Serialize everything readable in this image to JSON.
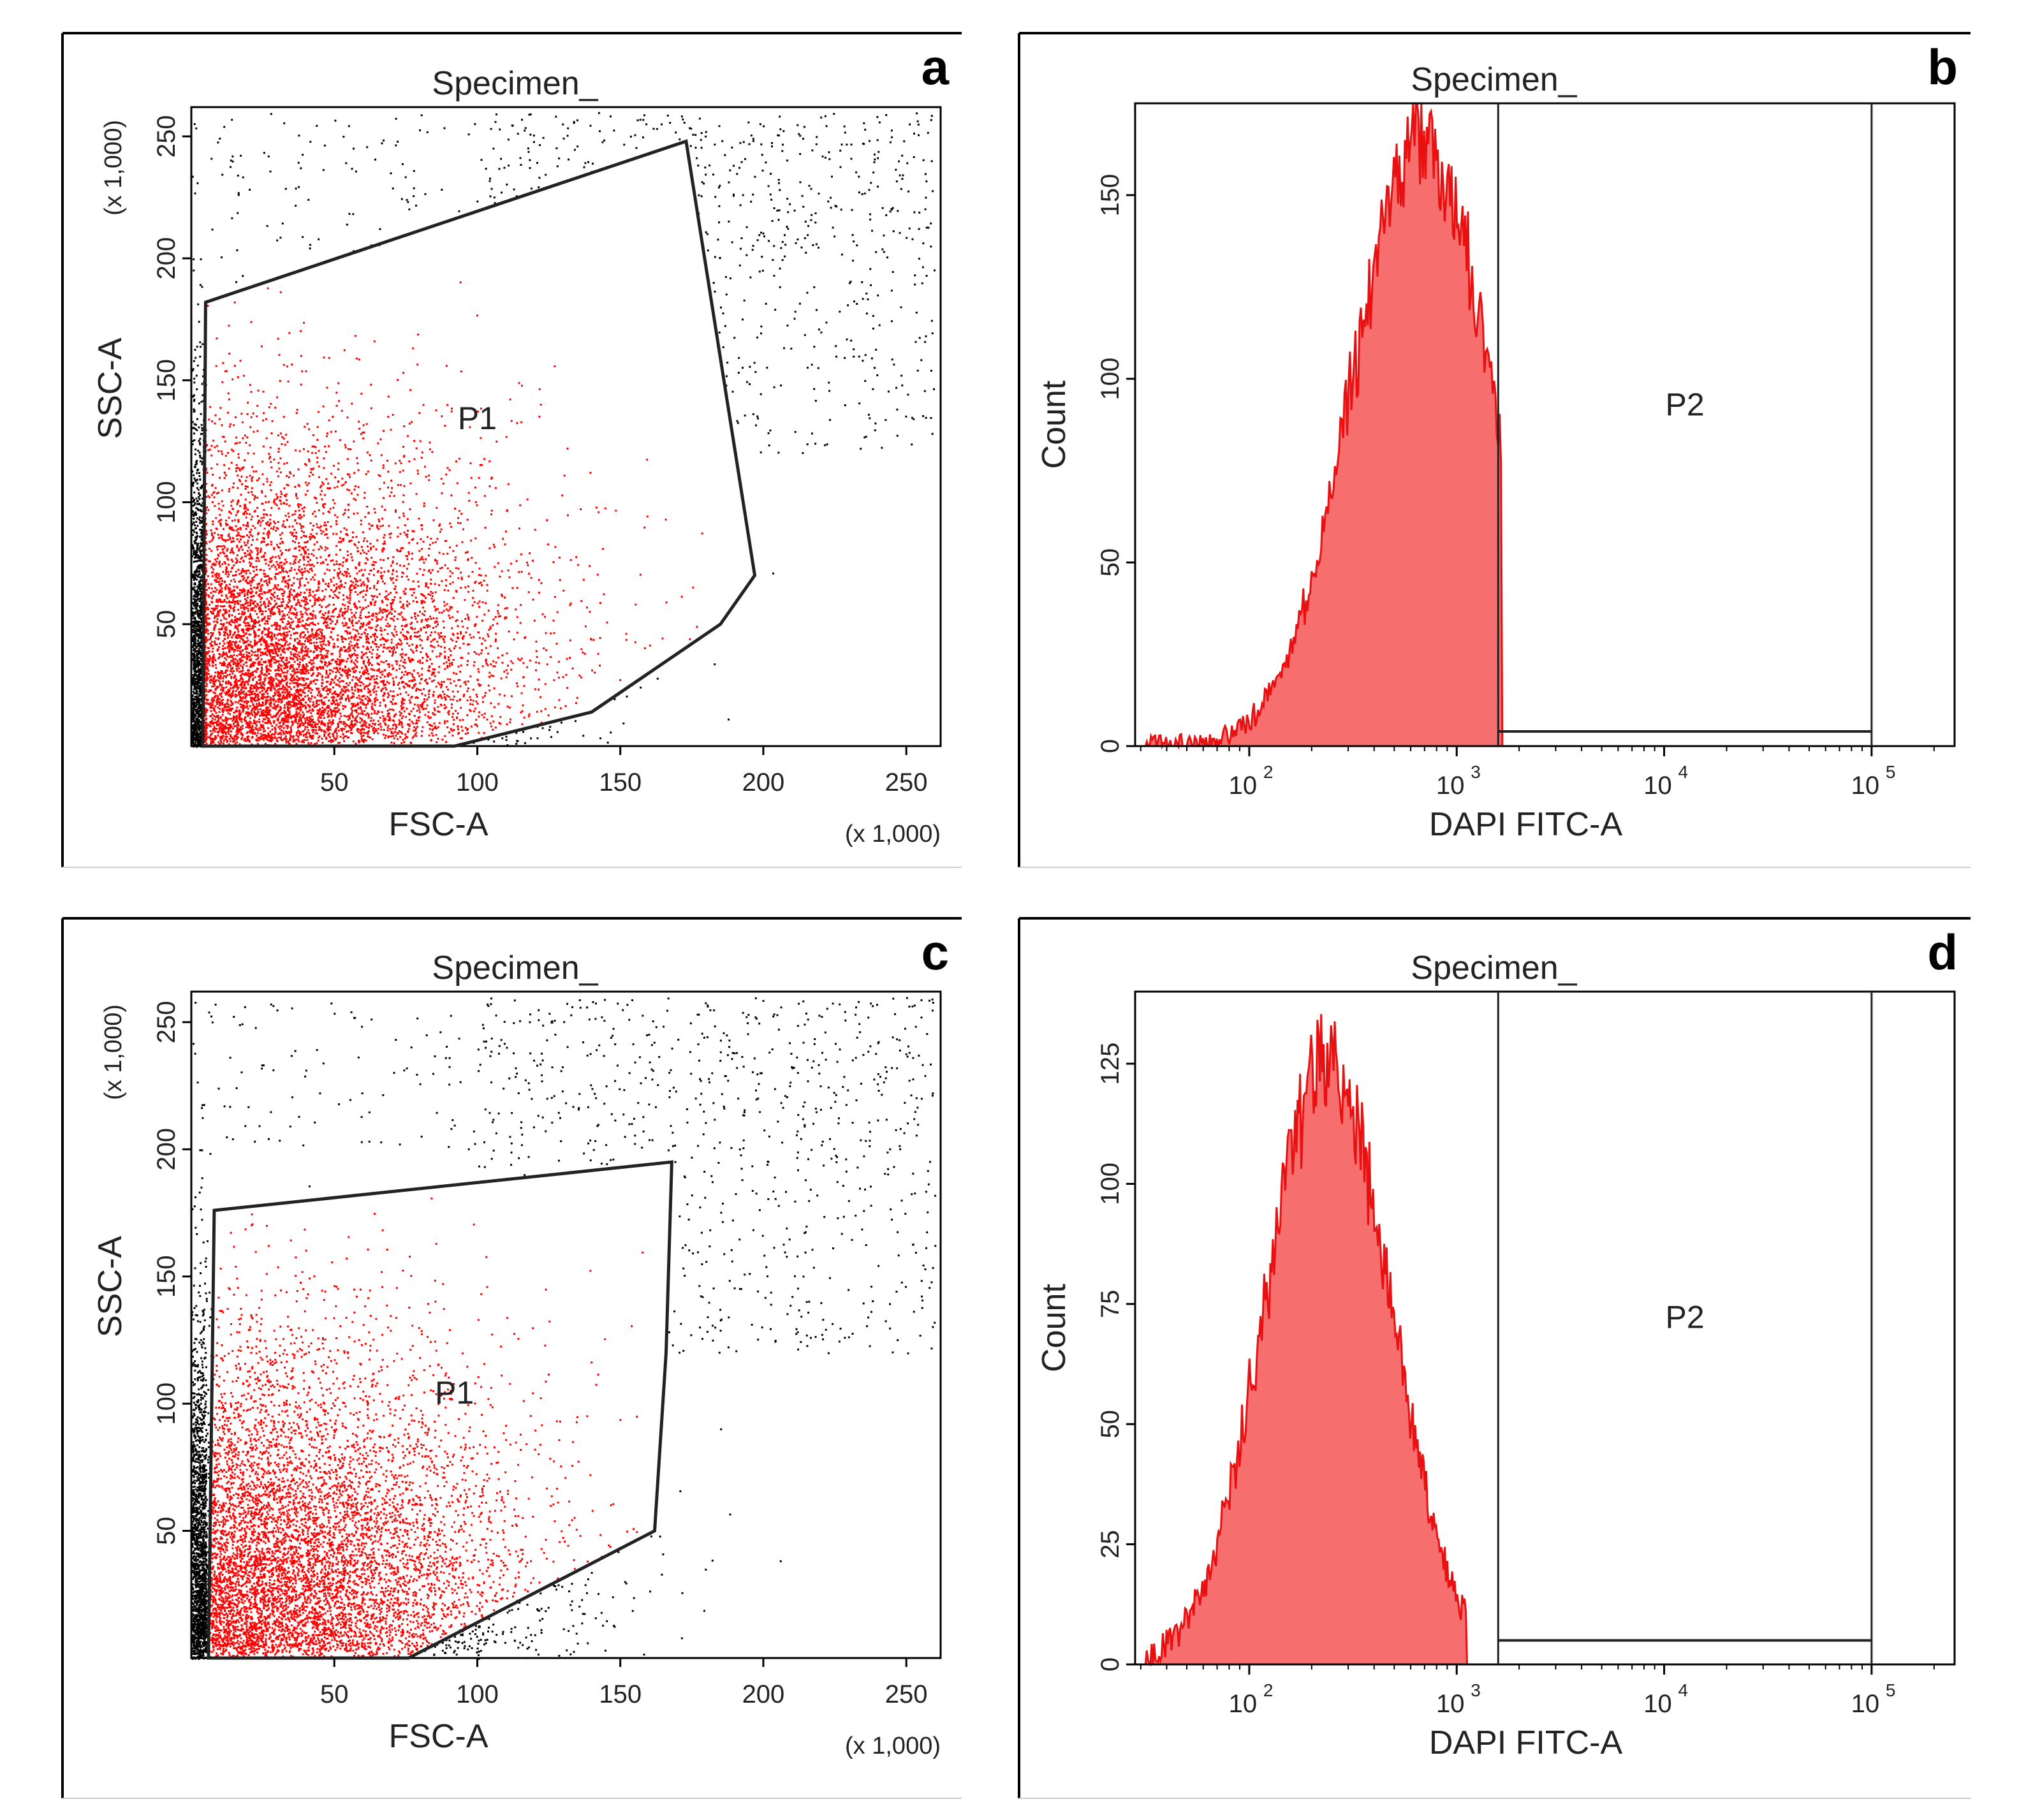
{
  "colors": {
    "gated": "#ff0000",
    "ungated": "#000000",
    "hist_fill": "#f76e6e",
    "hist_line": "#e81010"
  },
  "chart_data": [
    {
      "panel": "a",
      "type": "scatter",
      "title": "Specimen_",
      "xlabel": "FSC-A",
      "ylabel": "SSC-A",
      "x_scale_label": "(x 1,000)",
      "y_scale_label": "(x 1,000)",
      "xlim": [
        0,
        262
      ],
      "ylim": [
        0,
        262
      ],
      "xticks": [
        50,
        100,
        150,
        200,
        250
      ],
      "yticks": [
        50,
        100,
        150,
        200,
        250
      ],
      "gate": {
        "name": "P1",
        "label_at": [
          100,
          130
        ],
        "vertices": [
          [
            5,
            182
          ],
          [
            173,
            248
          ],
          [
            197,
            70
          ],
          [
            185,
            50
          ],
          [
            140,
            14
          ],
          [
            92,
            0
          ],
          [
            4,
            0
          ]
        ]
      },
      "population": {
        "center": [
          40,
          60
        ],
        "spread": [
          55,
          55
        ],
        "count": 7000,
        "dense_edge": true
      }
    },
    {
      "panel": "b",
      "type": "histogram",
      "title": "Specimen_",
      "xlabel": "DAPI FITC-A",
      "ylabel": "Count",
      "x_scale": "log",
      "xlim_log10": [
        1.45,
        5.4
      ],
      "ylim": [
        0,
        175
      ],
      "xticks": [
        {
          "value": 2,
          "base": "10",
          "exp": "2"
        },
        {
          "value": 3,
          "base": "10",
          "exp": "3"
        },
        {
          "value": 4,
          "base": "10",
          "exp": "4"
        },
        {
          "value": 5,
          "base": "10",
          "exp": "5"
        }
      ],
      "yticks": [
        0,
        50,
        100,
        150
      ],
      "gate": {
        "name": "P2",
        "x_log10": [
          3.2,
          5.0
        ],
        "line_count": 4,
        "label_count": 90
      },
      "histogram": {
        "mode_log10": 2.83,
        "sigma_log10": 0.33,
        "peak": 166,
        "start_log10": 1.5,
        "end_log10": 3.22
      }
    },
    {
      "panel": "c",
      "type": "scatter",
      "title": "Specimen_",
      "xlabel": "FSC-A",
      "ylabel": "SSC-A",
      "x_scale_label": "(x 1,000)",
      "y_scale_label": "(x 1,000)",
      "xlim": [
        0,
        262
      ],
      "ylim": [
        0,
        262
      ],
      "xticks": [
        50,
        100,
        150,
        200,
        250
      ],
      "yticks": [
        50,
        100,
        150,
        200,
        250
      ],
      "gate": {
        "name": "P1",
        "label_at": [
          92,
          100
        ],
        "vertices": [
          [
            8,
            176
          ],
          [
            168,
            195
          ],
          [
            166,
            120
          ],
          [
            162,
            50
          ],
          [
            76,
            0
          ],
          [
            6,
            0
          ]
        ]
      },
      "population": {
        "center": [
          30,
          60
        ],
        "spread": [
          55,
          55
        ],
        "count": 7000,
        "dense_edge": true
      }
    },
    {
      "panel": "d",
      "type": "histogram",
      "title": "Specimen_",
      "xlabel": "DAPI FITC-A",
      "ylabel": "Count",
      "x_scale": "log",
      "xlim_log10": [
        1.45,
        5.4
      ],
      "ylim": [
        0,
        140
      ],
      "xticks": [
        {
          "value": 2,
          "base": "10",
          "exp": "2"
        },
        {
          "value": 3,
          "base": "10",
          "exp": "3"
        },
        {
          "value": 4,
          "base": "10",
          "exp": "4"
        },
        {
          "value": 5,
          "base": "10",
          "exp": "5"
        }
      ],
      "yticks": [
        0,
        25,
        50,
        75,
        100,
        125
      ],
      "gate": {
        "name": "P2",
        "x_log10": [
          3.2,
          5.0
        ],
        "line_count": 5,
        "label_count": 70
      },
      "histogram": {
        "mode_log10": 2.38,
        "sigma_log10": 0.3,
        "peak": 125,
        "start_log10": 1.5,
        "end_log10": 3.05
      }
    }
  ]
}
